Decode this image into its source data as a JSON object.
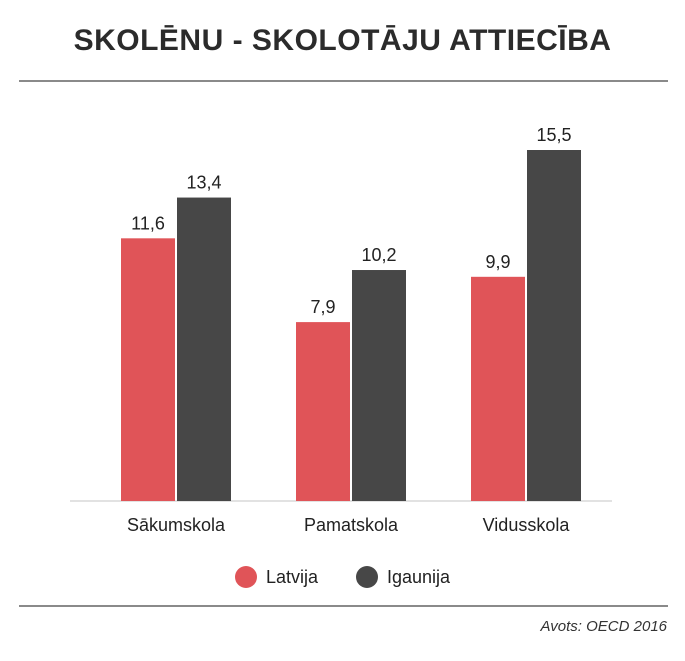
{
  "title": "SKOLĒNU - SKOLOTĀJU ATTIECĪBA",
  "source": "Avots: OECD 2016",
  "colors": {
    "latvija": "#e05458",
    "igaunija": "#474747",
    "axis": "#d9d9d9"
  },
  "chart_data": {
    "type": "bar",
    "title": "SKOLĒNU - SKOLOTĀJU ATTIECĪBA",
    "categories": [
      "Sākumskola",
      "Pamatskola",
      "Vidusskola"
    ],
    "series": [
      {
        "name": "Latvija",
        "values": [
          11.6,
          7.9,
          9.9
        ],
        "labels": [
          "11,6",
          "7,9",
          "9,9"
        ]
      },
      {
        "name": "Igaunija",
        "values": [
          13.4,
          10.2,
          15.5
        ],
        "labels": [
          "13,4",
          "10,2",
          "15,5"
        ]
      }
    ],
    "xlabel": "",
    "ylabel": "",
    "ylim": [
      0,
      15.5
    ],
    "grid": false,
    "legend": "bottom"
  }
}
